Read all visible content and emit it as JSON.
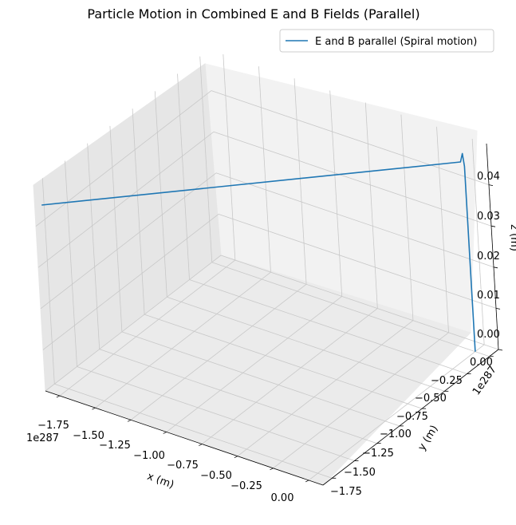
{
  "chart_data": {
    "type": "line",
    "projection": "3d",
    "title": "Particle Motion in Combined E and B Fields (Parallel)",
    "xlabel": "x (m)",
    "ylabel": "y (m)",
    "zlabel": "z (m)",
    "x_offset_label": "1e287",
    "y_offset_label": "1e287",
    "xlim": [
      -1.85,
      0.1
    ],
    "ylim": [
      -1.85,
      0.1
    ],
    "zlim": [
      0,
      0.05
    ],
    "x_ticks": [
      "−1.75",
      "−1.50",
      "−1.25",
      "−1.00",
      "−0.75",
      "−0.50",
      "−0.25",
      "0.00"
    ],
    "y_ticks": [
      "−1.75",
      "−1.50",
      "−1.25",
      "−1.00",
      "−0.75",
      "−0.50",
      "−0.25",
      "0.00"
    ],
    "z_ticks": [
      "0.00",
      "0.01",
      "0.02",
      "0.03",
      "0.04"
    ],
    "grid": true,
    "legend_position": "top-right",
    "series": [
      {
        "name": "E and B parallel (Spiral motion)",
        "color": "#1f77b4",
        "points": [
          {
            "x": 0.0,
            "y": 0.0,
            "z": 0.0
          },
          {
            "x": 0.0,
            "y": 0.0,
            "z": 0.045
          },
          {
            "x": -0.01,
            "y": 0.0,
            "z": 0.048
          },
          {
            "x": -0.02,
            "y": -0.01,
            "z": 0.046
          },
          {
            "x": -1.82,
            "y": -1.82,
            "z": 0.045
          }
        ]
      }
    ]
  }
}
